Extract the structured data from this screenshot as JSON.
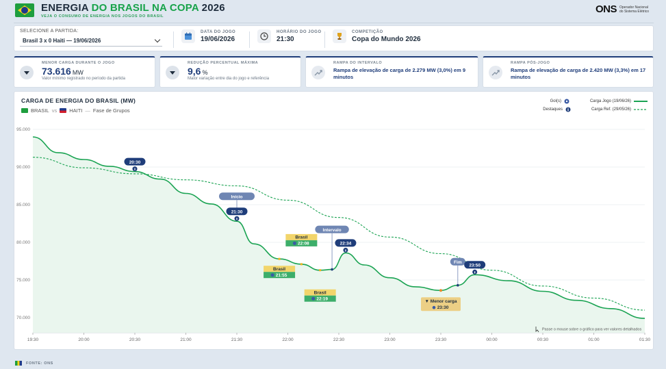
{
  "header": {
    "title_a": "ENERGIA ",
    "title_b": "DO BRASIL NA COPA",
    "title_c": " 2026",
    "subtitle": "VEJA O CONSUMO DE ENERGIA NOS JOGOS DO BRASIL",
    "org_logo": "ONS",
    "org_name": "Operador Nacional do Sistema Elétrico"
  },
  "filters": {
    "select_label": "SELECIONE A PARTIDA:",
    "selected_match": "Brasil 3 x 0 Haiti — 19/06/2026",
    "date_label": "DATA DO JOGO",
    "date_value": "19/06/2026",
    "time_label": "HORÁRIO DO JOGO",
    "time_value": "21:30",
    "comp_label": "COMPETIÇÃO",
    "comp_value": "Copa do Mundo 2026"
  },
  "kpis": {
    "min_label": "MENOR CARGA DURANTE O JOGO",
    "min_value": "73.616",
    "min_unit": "MW",
    "min_desc": "Valor mínimo registrado no período da partida",
    "red_label": "REDUÇÃO PERCENTUAL MÁXIMA",
    "red_value": "9,6",
    "red_unit": "%",
    "red_desc": "Maior variação entre dia do jogo e referência",
    "ramp_label": "RAMPA DO INTERVALO",
    "ramp_text": "Rampa de elevação de carga de 2.279 MW (3,0%) em 9 minutos",
    "post_label": "RAMPA PÓS-JOGO",
    "post_text": "Rampa de elevação de carga de 2.420 MW (3,3%) em 17 minutos"
  },
  "chart_panel": {
    "title": "CARGA DE ENERGIA DO BRASIL (MW)",
    "team_a": "BRASIL",
    "vs": "vs",
    "team_b": "HAITI",
    "phase": "Fase de Grupos",
    "legend_goals": "Gol(s)",
    "legend_highlights": "Destaques",
    "legend_game": "Carga Jogo (19/06/26)",
    "legend_ref": "Carga Ref. (29/05/26)",
    "hover_hint": "Passe o mouse sobre o gráfico para ver valores detalhados"
  },
  "chart_data": {
    "type": "line",
    "xlabel": "",
    "ylabel": "",
    "ylim": [
      68000,
      95000
    ],
    "y_ticks": [
      "95.000",
      "90.000",
      "85.000",
      "80.000",
      "75.000",
      "70.000"
    ],
    "x_ticks": [
      "19:30",
      "20:00",
      "20:30",
      "21:00",
      "21:30",
      "22:00",
      "22:30",
      "23:00",
      "23:30",
      "00:00",
      "00:30",
      "01:00",
      "01:30"
    ],
    "series": [
      {
        "name": "Carga Jogo (19/06/26)",
        "style": "solid",
        "color": "#1aa352",
        "x": [
          "19:30",
          "19:45",
          "20:00",
          "20:15",
          "20:30",
          "20:45",
          "21:00",
          "21:15",
          "21:30",
          "21:40",
          "21:55",
          "22:08",
          "22:19",
          "22:26",
          "22:34",
          "22:45",
          "23:00",
          "23:15",
          "23:30",
          "23:40",
          "23:50",
          "24:10",
          "24:30",
          "24:50",
          "25:10",
          "25:30"
        ],
        "values": [
          94000,
          91900,
          91000,
          90100,
          89400,
          88400,
          86500,
          85100,
          82800,
          79800,
          77800,
          77100,
          76300,
          76400,
          78600,
          77000,
          75300,
          74100,
          73616,
          74300,
          75700,
          74900,
          73500,
          72300,
          71200,
          69900
        ]
      },
      {
        "name": "Carga Ref. (29/05/26)",
        "style": "dashed",
        "color": "#1aa352",
        "x": [
          "19:30",
          "20:00",
          "20:30",
          "21:00",
          "21:30",
          "22:00",
          "22:30",
          "23:00",
          "23:30",
          "24:00",
          "24:30",
          "25:00",
          "25:30"
        ],
        "values": [
          91300,
          89900,
          89100,
          88300,
          87500,
          85600,
          83300,
          80700,
          78500,
          76300,
          74200,
          72600,
          71000
        ]
      }
    ],
    "annotations": [
      {
        "time": "20:30",
        "label": "20:30",
        "kind": "destaque"
      },
      {
        "time": "21:30",
        "label": "21:30",
        "title": "Início",
        "kind": "destaque"
      },
      {
        "time": "21:55",
        "label": "21:55",
        "title": "Brasil",
        "kind": "gol"
      },
      {
        "time": "22:08",
        "label": "22:08",
        "title": "Brasil",
        "kind": "gol"
      },
      {
        "time": "22:19",
        "label": "22:19",
        "title": "Brasil",
        "kind": "gol"
      },
      {
        "time": "22:26",
        "label": "Intervalo",
        "kind": "destaque"
      },
      {
        "time": "22:34",
        "label": "22:34",
        "kind": "destaque"
      },
      {
        "time": "23:30",
        "label": "23:30",
        "title": "▼ Menor carga",
        "kind": "min"
      },
      {
        "time": "23:40",
        "label": "Fim",
        "kind": "destaque"
      },
      {
        "time": "23:50",
        "label": "23:50",
        "kind": "destaque"
      }
    ]
  },
  "footer": {
    "source": "FONTE: ONS"
  },
  "colors": {
    "accent": "#1f3d7a",
    "green": "#1aa352",
    "gold": "#f2d56b",
    "fill": "#eaf6ee"
  }
}
